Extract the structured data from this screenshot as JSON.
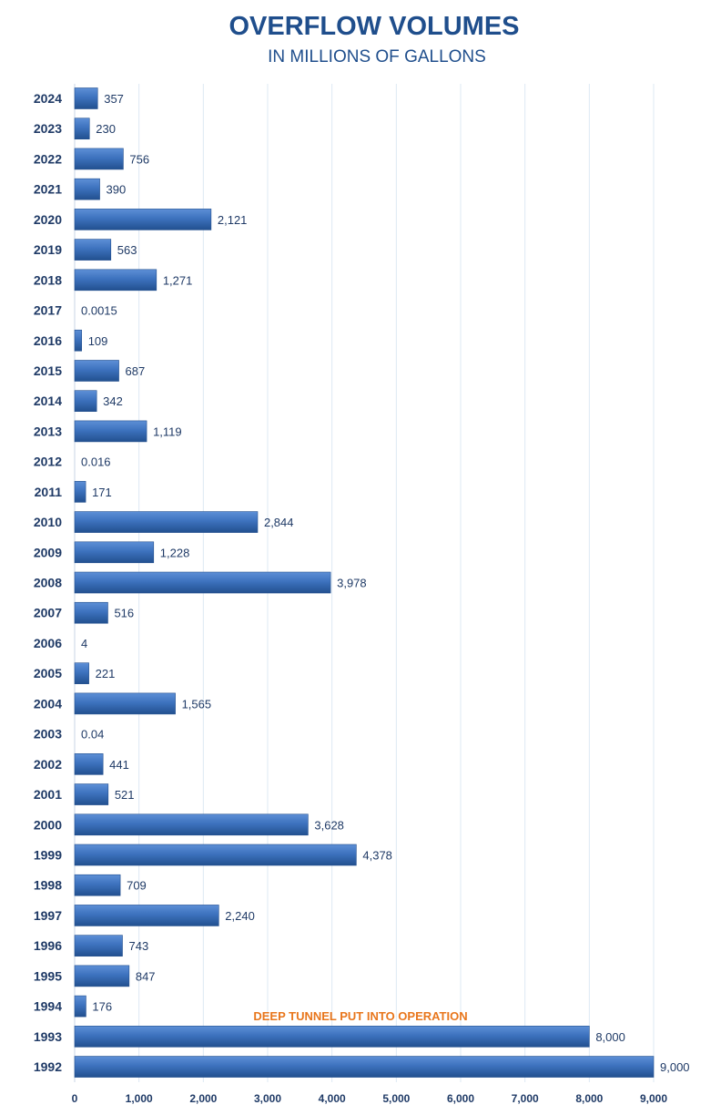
{
  "chart_data": {
    "type": "bar",
    "orientation": "horizontal",
    "title": "OVERFLOW VOLUMES",
    "subtitle": "IN MILLIONS OF GALLONS",
    "categories": [
      "2024",
      "2023",
      "2022",
      "2021",
      "2020",
      "2019",
      "2018",
      "2017",
      "2016",
      "2015",
      "2014",
      "2013",
      "2012",
      "2011",
      "2010",
      "2009",
      "2008",
      "2007",
      "2006",
      "2005",
      "2004",
      "2003",
      "2002",
      "2001",
      "2000",
      "1999",
      "1998",
      "1997",
      "1996",
      "1995",
      "1994",
      "1993",
      "1992"
    ],
    "values": [
      357,
      230,
      756,
      390,
      2121,
      563,
      1271,
      0.0015,
      109,
      687,
      342,
      1119,
      0.016,
      171,
      2844,
      1228,
      3978,
      516,
      4,
      221,
      1565,
      0.04,
      441,
      521,
      3628,
      4378,
      709,
      2240,
      743,
      847,
      176,
      8000,
      9000
    ],
    "value_labels": [
      "357",
      "230",
      "756",
      "390",
      "2,121",
      "563",
      "1,271",
      "0.0015",
      "109",
      "687",
      "342",
      "1,119",
      "0.016",
      "171",
      "2,844",
      "1,228",
      "3,978",
      "516",
      "4",
      "221",
      "1,565",
      "0.04",
      "441",
      "521",
      "3,628",
      "4,378",
      "709",
      "2,240",
      "743",
      "847",
      "176",
      "8,000",
      "9,000"
    ],
    "xlim": [
      0,
      9000
    ],
    "x_ticks": [
      0,
      1000,
      2000,
      3000,
      4000,
      5000,
      6000,
      7000,
      8000,
      9000
    ],
    "x_tick_labels": [
      "0",
      "1,000",
      "2,000",
      "3,000",
      "4,000",
      "5,000",
      "6,000",
      "7,000",
      "8,000",
      "9,000"
    ],
    "grid": true,
    "bar_color": "#3a6fba",
    "annotation": {
      "text": "DEEP TUNNEL PUT INTO OPERATION",
      "near_category": "1993",
      "color": "#e8761c"
    }
  }
}
